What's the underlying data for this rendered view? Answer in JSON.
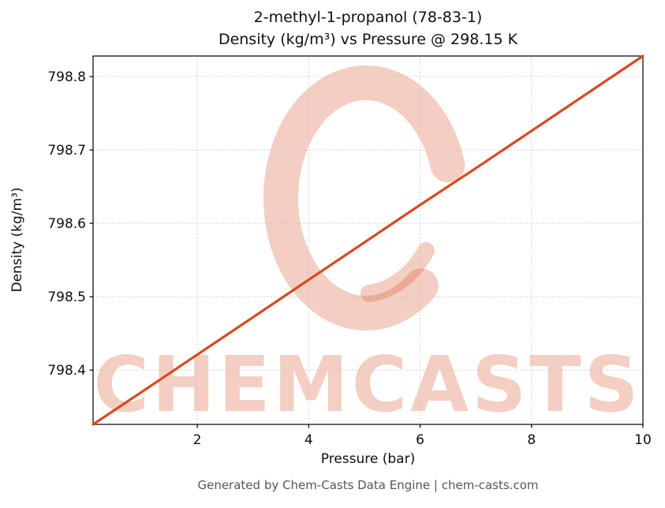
{
  "title": {
    "line1": "2-methyl-1-propanol (78-83-1)",
    "line2": "Density (kg/m³) vs Pressure @ 298.15 K"
  },
  "axes": {
    "xlabel": "Pressure (bar)",
    "ylabel": "Density (kg/m³)"
  },
  "footer": {
    "text": "Generated by Chem-Casts Data Engine | chem-casts.com"
  },
  "watermark": {
    "text": "CHEMCASTS",
    "logo": "brush-circle-c",
    "color": "#d8491f",
    "opacity": 0.27
  },
  "chart_data": {
    "type": "line",
    "title": "2-methyl-1-propanol (78-83-1) — Density (kg/m³) vs Pressure @ 298.15 K",
    "xlabel": "Pressure (bar)",
    "ylabel": "Density (kg/m³)",
    "x": [
      0.13,
      1,
      2,
      3,
      4,
      5,
      6,
      7,
      8,
      9,
      10
    ],
    "y": [
      798.326,
      798.37,
      798.421,
      798.472,
      798.523,
      798.574,
      798.625,
      798.675,
      798.726,
      798.777,
      798.828
    ],
    "xlim": [
      0.13,
      10
    ],
    "ylim": [
      798.326,
      798.828
    ],
    "xticks": [
      2,
      4,
      6,
      8,
      10
    ],
    "xtick_labels": [
      "2",
      "4",
      "6",
      "8",
      "10"
    ],
    "yticks": [
      798.4,
      798.5,
      798.6,
      798.7,
      798.8
    ],
    "ytick_labels": [
      "798.4",
      "798.5",
      "798.6",
      "798.7",
      "798.8"
    ],
    "line_color": "#d8491f",
    "line_width": 3.2,
    "grid": true,
    "grid_style": "dotted",
    "legend": false
  }
}
